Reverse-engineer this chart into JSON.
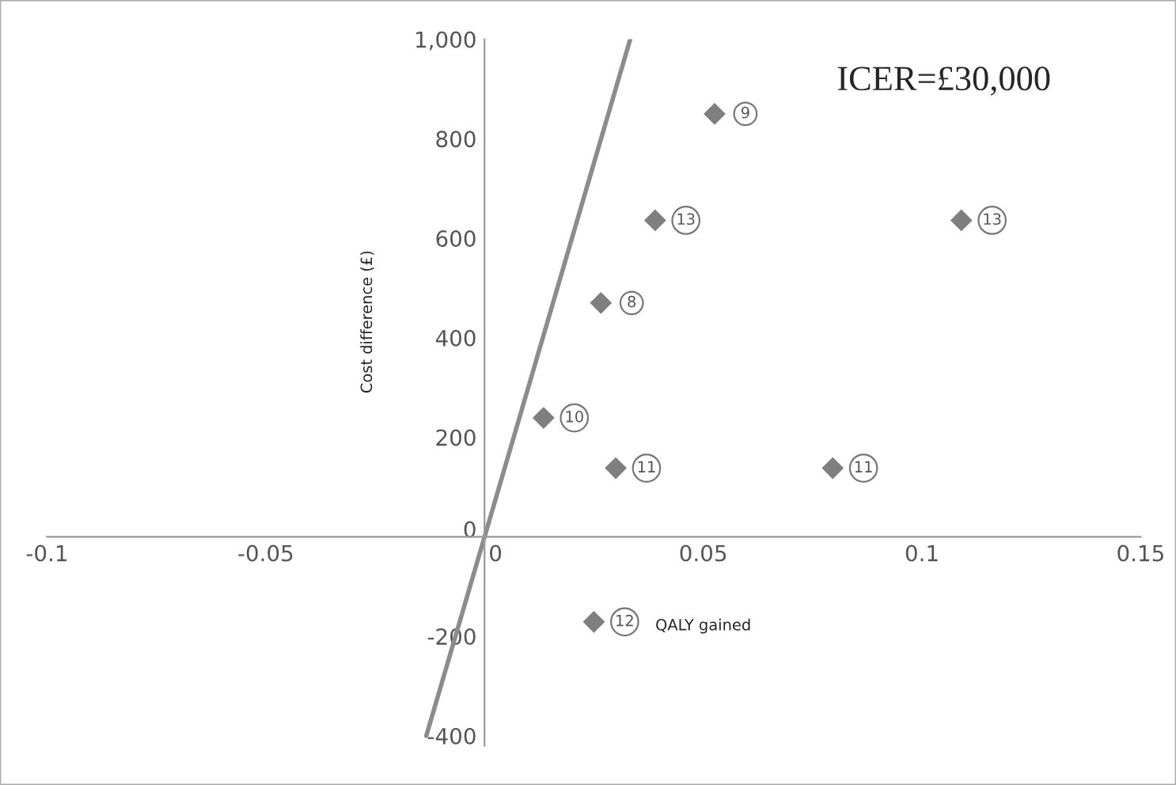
{
  "chart_data": {
    "type": "scatter",
    "xlabel": "QALY gained",
    "ylabel": "Cost difference (£)",
    "xlim": [
      -0.1,
      0.15
    ],
    "ylim": [
      -420,
      1000
    ],
    "xticks": [
      -0.1,
      -0.05,
      0,
      0.05,
      0.1,
      0.15
    ],
    "yticks": [
      {
        "value": -400,
        "label": "-400"
      },
      {
        "value": -200,
        "label": "-200"
      },
      0,
      200,
      400,
      600,
      800,
      {
        "value": 1000,
        "label": "1,000"
      }
    ],
    "grid": false,
    "series": [
      {
        "color": "#7f7f7f",
        "marker": "diamond",
        "x": [
          0.0526,
          0.039,
          0.109,
          0.0266,
          0.0135,
          0.03,
          0.0796,
          0.025
        ],
        "values": [
          850,
          636,
          636,
          470,
          239,
          138,
          138,
          -171
        ]
      },
      {
        "type": "line",
        "color": "#8c8c8c",
        "x": [
          -0.0133,
          0.0333
        ],
        "values": [
          -400,
          1000
        ]
      }
    ],
    "annotations": [
      {
        "text": "9",
        "x": 0.0526,
        "y": 850
      },
      {
        "text": "13",
        "x": 0.039,
        "y": 636
      },
      {
        "text": "13",
        "x": 0.109,
        "y": 636
      },
      {
        "text": "8",
        "x": 0.0266,
        "y": 470
      },
      {
        "text": "10",
        "x": 0.0135,
        "y": 239
      },
      {
        "text": "11",
        "x": 0.03,
        "y": 138
      },
      {
        "text": "11",
        "x": 0.0796,
        "y": 138
      },
      {
        "text": "12",
        "x": 0.025,
        "y": -171
      },
      "ICER=£30,000"
    ]
  }
}
